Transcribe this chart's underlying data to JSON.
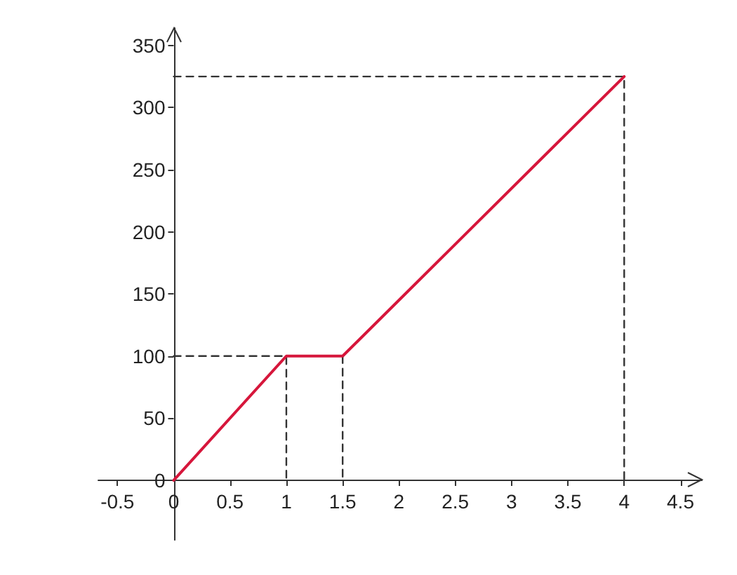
{
  "chart_data": {
    "type": "line",
    "xlim": [
      -0.67,
      4.69
    ],
    "ylim": [
      -48,
      364
    ],
    "xticks": [
      -0.5,
      0,
      0.5,
      1,
      1.5,
      2,
      2.5,
      3,
      3.5,
      4,
      4.5
    ],
    "yticks": [
      0,
      50,
      100,
      150,
      200,
      250,
      300,
      350
    ],
    "grid": false,
    "marker": "none",
    "series": [
      {
        "color": "#d6163b",
        "line_style": "solid",
        "x": [
          0,
          1,
          1.5,
          4
        ],
        "values": [
          0,
          100,
          100,
          325
        ]
      },
      {
        "color": "#333333",
        "line_style": "dashed",
        "x": [
          0,
          1,
          1
        ],
        "values": [
          100,
          100,
          0
        ]
      },
      {
        "color": "#333333",
        "line_style": "dashed",
        "x": [
          1.5,
          1.5
        ],
        "values": [
          100,
          0
        ]
      },
      {
        "color": "#333333",
        "line_style": "dashed",
        "x": [
          0,
          4,
          4
        ],
        "values": [
          325,
          325,
          0
        ]
      }
    ]
  }
}
